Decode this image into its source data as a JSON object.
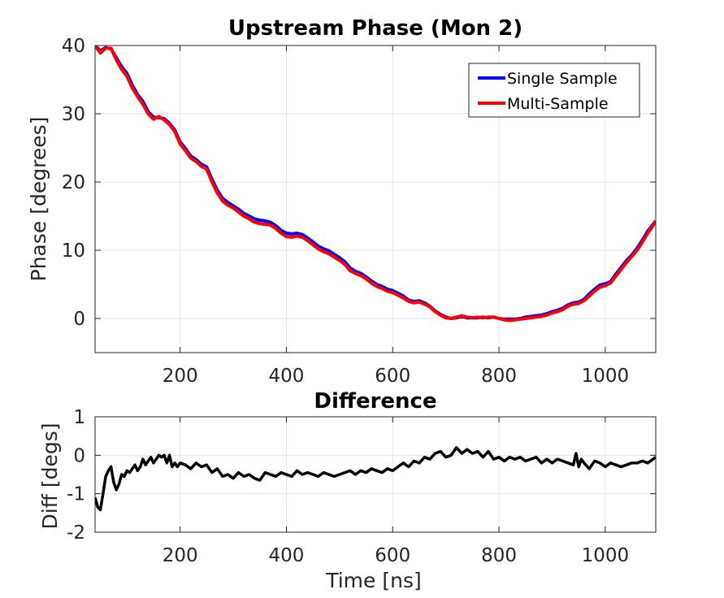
{
  "chart_data": [
    {
      "type": "line",
      "title": "Upstream Phase (Mon 2)",
      "xlabel": "",
      "ylabel": "Phase [degrees]",
      "xlim": [
        40,
        1095
      ],
      "ylim": [
        -5,
        40
      ],
      "xticks": [
        200,
        400,
        600,
        800,
        1000
      ],
      "yticks": [
        0,
        10,
        20,
        30,
        40
      ],
      "grid": true,
      "legend_position": "top-right",
      "series": [
        {
          "name": "Single Sample",
          "color": "#0000ff",
          "x": [
            40,
            50,
            60,
            70,
            80,
            90,
            100,
            110,
            120,
            130,
            140,
            150,
            160,
            170,
            180,
            190,
            200,
            210,
            220,
            230,
            240,
            250,
            260,
            270,
            280,
            290,
            300,
            310,
            320,
            330,
            340,
            350,
            360,
            370,
            380,
            390,
            400,
            410,
            420,
            430,
            440,
            450,
            460,
            470,
            480,
            490,
            500,
            510,
            520,
            530,
            540,
            550,
            560,
            570,
            580,
            590,
            600,
            610,
            620,
            630,
            640,
            650,
            660,
            670,
            680,
            690,
            700,
            710,
            720,
            730,
            740,
            750,
            760,
            770,
            780,
            790,
            800,
            810,
            820,
            830,
            840,
            850,
            860,
            870,
            880,
            890,
            900,
            910,
            920,
            930,
            940,
            950,
            960,
            970,
            980,
            990,
            1000,
            1010,
            1020,
            1030,
            1040,
            1050,
            1060,
            1070,
            1080,
            1090,
            1095
          ],
          "values": [
            40.0,
            39.2,
            39.7,
            39.5,
            38.2,
            36.9,
            35.9,
            34.2,
            32.8,
            31.8,
            30.3,
            29.5,
            29.4,
            29.3,
            28.6,
            27.6,
            25.9,
            24.9,
            23.8,
            23.3,
            22.6,
            22.2,
            20.4,
            18.8,
            17.6,
            17.0,
            16.5,
            16.0,
            15.4,
            15.0,
            14.6,
            14.4,
            14.3,
            14.1,
            13.6,
            12.9,
            12.5,
            12.4,
            12.5,
            12.3,
            11.8,
            11.2,
            10.6,
            10.2,
            9.9,
            9.4,
            8.9,
            8.3,
            7.4,
            6.9,
            6.6,
            6.1,
            5.5,
            5.0,
            4.7,
            4.3,
            4.1,
            3.7,
            3.3,
            2.7,
            2.5,
            2.6,
            2.3,
            1.8,
            1.1,
            0.6,
            0.2,
            0.0,
            0.1,
            0.3,
            0.1,
            0.1,
            0.1,
            0.2,
            0.1,
            0.2,
            0.0,
            -0.1,
            -0.1,
            -0.1,
            0.0,
            0.2,
            0.3,
            0.4,
            0.5,
            0.7,
            1.0,
            1.2,
            1.5,
            2.0,
            2.3,
            2.4,
            2.8,
            3.6,
            4.3,
            4.9,
            5.1,
            5.4,
            6.5,
            7.5,
            8.5,
            9.3,
            10.3,
            11.5,
            12.8,
            13.8,
            14.3
          ]
        },
        {
          "name": "Multi-Sample",
          "color": "#ff0000",
          "x": [
            40,
            50,
            60,
            70,
            80,
            90,
            100,
            110,
            120,
            130,
            140,
            150,
            160,
            170,
            180,
            190,
            200,
            210,
            220,
            230,
            240,
            250,
            260,
            270,
            280,
            290,
            300,
            310,
            320,
            330,
            340,
            350,
            360,
            370,
            380,
            390,
            400,
            410,
            420,
            430,
            440,
            450,
            460,
            470,
            480,
            490,
            500,
            510,
            520,
            530,
            540,
            550,
            560,
            570,
            580,
            590,
            600,
            610,
            620,
            630,
            640,
            650,
            660,
            670,
            680,
            690,
            700,
            710,
            720,
            730,
            740,
            750,
            760,
            770,
            780,
            790,
            800,
            810,
            820,
            830,
            840,
            850,
            860,
            870,
            880,
            890,
            900,
            910,
            920,
            930,
            940,
            950,
            960,
            970,
            980,
            990,
            1000,
            1010,
            1020,
            1030,
            1040,
            1050,
            1060,
            1070,
            1080,
            1090,
            1095
          ],
          "values": [
            40.0,
            38.9,
            39.6,
            39.6,
            37.9,
            36.5,
            35.5,
            33.8,
            32.5,
            31.4,
            30.0,
            29.2,
            29.6,
            29.1,
            28.4,
            27.4,
            25.6,
            24.6,
            23.5,
            23.0,
            22.3,
            21.9,
            20.0,
            18.4,
            17.2,
            16.6,
            16.2,
            15.6,
            15.0,
            14.6,
            14.1,
            13.9,
            13.8,
            13.7,
            13.2,
            12.5,
            12.0,
            11.9,
            12.1,
            11.9,
            11.4,
            10.8,
            10.2,
            9.8,
            9.5,
            9.0,
            8.5,
            7.9,
            7.0,
            6.6,
            6.3,
            5.8,
            5.2,
            4.7,
            4.4,
            4.0,
            3.8,
            3.4,
            3.0,
            2.5,
            2.3,
            2.4,
            2.1,
            1.7,
            1.0,
            0.5,
            0.1,
            0.0,
            0.2,
            0.4,
            0.2,
            0.1,
            0.2,
            0.1,
            0.2,
            0.2,
            0.0,
            -0.2,
            -0.3,
            -0.2,
            -0.1,
            0.0,
            0.1,
            0.2,
            0.3,
            0.5,
            0.8,
            1.0,
            1.3,
            1.8,
            2.1,
            2.2,
            2.6,
            3.3,
            4.0,
            4.6,
            4.8,
            5.2,
            6.2,
            7.2,
            8.2,
            9.1,
            10.0,
            11.2,
            12.5,
            13.6,
            14.3
          ]
        }
      ]
    },
    {
      "type": "line",
      "title": "Difference",
      "xlabel": "Time [ns]",
      "ylabel": "Diff [degs]",
      "xlim": [
        40,
        1095
      ],
      "ylim": [
        -2,
        1
      ],
      "xticks": [
        200,
        400,
        600,
        800,
        1000
      ],
      "yticks": [
        -2,
        -1,
        0,
        1
      ],
      "grid": true,
      "series": [
        {
          "color": "#000000",
          "x": [
            40,
            45,
            50,
            55,
            60,
            65,
            70,
            75,
            80,
            85,
            90,
            95,
            100,
            105,
            110,
            115,
            120,
            125,
            130,
            135,
            140,
            145,
            150,
            155,
            160,
            165,
            170,
            175,
            180,
            185,
            190,
            195,
            200,
            210,
            220,
            230,
            240,
            250,
            260,
            270,
            280,
            290,
            300,
            310,
            320,
            330,
            340,
            350,
            360,
            370,
            380,
            390,
            400,
            410,
            420,
            430,
            440,
            450,
            460,
            470,
            480,
            490,
            500,
            510,
            520,
            530,
            540,
            550,
            560,
            570,
            580,
            590,
            600,
            610,
            620,
            630,
            640,
            650,
            660,
            670,
            680,
            690,
            700,
            710,
            720,
            730,
            740,
            750,
            760,
            770,
            780,
            790,
            800,
            810,
            820,
            830,
            840,
            850,
            860,
            870,
            880,
            890,
            900,
            910,
            920,
            930,
            940,
            945,
            950,
            955,
            960,
            970,
            980,
            990,
            1000,
            1010,
            1020,
            1030,
            1040,
            1050,
            1060,
            1070,
            1080,
            1090,
            1095
          ],
          "values": [
            -1.1,
            -1.35,
            -1.42,
            -1.0,
            -0.55,
            -0.4,
            -0.3,
            -0.7,
            -0.9,
            -0.75,
            -0.5,
            -0.55,
            -0.4,
            -0.45,
            -0.35,
            -0.25,
            -0.4,
            -0.3,
            -0.1,
            -0.25,
            -0.15,
            -0.05,
            -0.2,
            -0.1,
            0.0,
            -0.05,
            0.0,
            -0.2,
            0.0,
            -0.3,
            -0.2,
            -0.3,
            -0.2,
            -0.25,
            -0.35,
            -0.2,
            -0.3,
            -0.25,
            -0.45,
            -0.35,
            -0.55,
            -0.5,
            -0.6,
            -0.45,
            -0.55,
            -0.5,
            -0.6,
            -0.65,
            -0.45,
            -0.5,
            -0.55,
            -0.45,
            -0.5,
            -0.55,
            -0.4,
            -0.5,
            -0.45,
            -0.5,
            -0.55,
            -0.45,
            -0.5,
            -0.55,
            -0.5,
            -0.45,
            -0.4,
            -0.5,
            -0.4,
            -0.45,
            -0.35,
            -0.4,
            -0.45,
            -0.35,
            -0.4,
            -0.3,
            -0.2,
            -0.3,
            -0.15,
            -0.2,
            -0.05,
            -0.1,
            0.05,
            0.1,
            -0.05,
            0.0,
            0.2,
            0.05,
            0.15,
            0.05,
            0.1,
            -0.05,
            0.1,
            -0.1,
            -0.05,
            -0.15,
            -0.05,
            -0.1,
            -0.05,
            -0.15,
            -0.1,
            -0.05,
            -0.2,
            -0.1,
            -0.2,
            -0.1,
            -0.15,
            -0.2,
            -0.25,
            0.05,
            -0.3,
            -0.1,
            -0.2,
            -0.35,
            -0.15,
            -0.2,
            -0.3,
            -0.2,
            -0.25,
            -0.3,
            -0.25,
            -0.2,
            -0.2,
            -0.15,
            -0.2,
            -0.1,
            -0.05
          ]
        }
      ]
    }
  ]
}
